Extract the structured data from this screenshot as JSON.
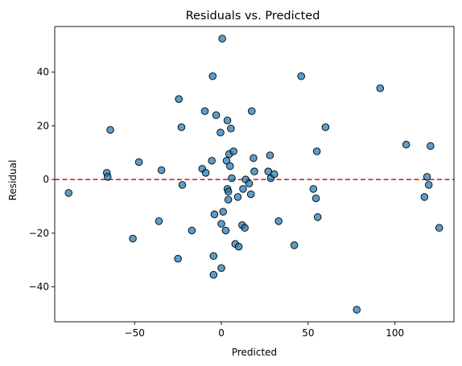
{
  "chart_data": {
    "type": "scatter",
    "title": "Residuals vs. Predicted",
    "xlabel": "Predicted",
    "ylabel": "Residual",
    "xlim": [
      -96,
      134
    ],
    "ylim": [
      -53,
      57
    ],
    "xticks": [
      -50,
      0,
      50,
      100
    ],
    "yticks": [
      -40,
      -20,
      0,
      20,
      40
    ],
    "grid": false,
    "reference_line": {
      "y": 0,
      "color": "#d62728",
      "style": "dashed"
    },
    "marker_color": "#1f77b4",
    "marker_edge_color": "#000000",
    "points": [
      {
        "x": -88,
        "y": -5
      },
      {
        "x": -66,
        "y": 2.5
      },
      {
        "x": -65.5,
        "y": 1
      },
      {
        "x": -64,
        "y": 18.5
      },
      {
        "x": -51,
        "y": -22
      },
      {
        "x": -47.5,
        "y": 6.5
      },
      {
        "x": -36,
        "y": -15.5
      },
      {
        "x": -34.5,
        "y": 3.5
      },
      {
        "x": -25,
        "y": -29.5
      },
      {
        "x": -24.5,
        "y": 30
      },
      {
        "x": -23,
        "y": 19.5
      },
      {
        "x": -22.5,
        "y": -2
      },
      {
        "x": -17,
        "y": -19
      },
      {
        "x": -11,
        "y": 4
      },
      {
        "x": -9.5,
        "y": 25.5
      },
      {
        "x": -9,
        "y": 2.5
      },
      {
        "x": -5.5,
        "y": 7
      },
      {
        "x": -5,
        "y": 38.5
      },
      {
        "x": -4.5,
        "y": -28.5
      },
      {
        "x": -4.5,
        "y": -35.5
      },
      {
        "x": -4,
        "y": -13
      },
      {
        "x": -3,
        "y": 24
      },
      {
        "x": -0.5,
        "y": 17.5
      },
      {
        "x": 0,
        "y": -16.5
      },
      {
        "x": 0,
        "y": -33
      },
      {
        "x": 0.5,
        "y": 52.5
      },
      {
        "x": 1,
        "y": -12
      },
      {
        "x": 2.5,
        "y": -19
      },
      {
        "x": 3,
        "y": 7
      },
      {
        "x": 3.5,
        "y": -3.5
      },
      {
        "x": 3.5,
        "y": 22
      },
      {
        "x": 4,
        "y": -7.5
      },
      {
        "x": 4,
        "y": -4.5
      },
      {
        "x": 4.5,
        "y": 9.5
      },
      {
        "x": 5,
        "y": 5
      },
      {
        "x": 5.5,
        "y": 19
      },
      {
        "x": 6,
        "y": 0.5
      },
      {
        "x": 7,
        "y": 10.5
      },
      {
        "x": 8,
        "y": -24
      },
      {
        "x": 9.5,
        "y": -6.5
      },
      {
        "x": 10,
        "y": -25
      },
      {
        "x": 12,
        "y": -17
      },
      {
        "x": 12.5,
        "y": -3.5
      },
      {
        "x": 13.5,
        "y": -18
      },
      {
        "x": 14,
        "y": 0
      },
      {
        "x": 16,
        "y": -1.5
      },
      {
        "x": 17,
        "y": -5.5
      },
      {
        "x": 17.5,
        "y": 25.5
      },
      {
        "x": 18.5,
        "y": 8
      },
      {
        "x": 19,
        "y": 3
      },
      {
        "x": 27,
        "y": 3
      },
      {
        "x": 28,
        "y": 9
      },
      {
        "x": 28.5,
        "y": 0.5
      },
      {
        "x": 30.5,
        "y": 2
      },
      {
        "x": 33,
        "y": -15.5
      },
      {
        "x": 42,
        "y": -24.5
      },
      {
        "x": 46,
        "y": 38.5
      },
      {
        "x": 53,
        "y": -3.5
      },
      {
        "x": 54.5,
        "y": -7
      },
      {
        "x": 55,
        "y": 10.5
      },
      {
        "x": 55.5,
        "y": -14
      },
      {
        "x": 60,
        "y": 19.5
      },
      {
        "x": 78,
        "y": -48.5
      },
      {
        "x": 91.5,
        "y": 34
      },
      {
        "x": 106.5,
        "y": 13
      },
      {
        "x": 117,
        "y": -6.5
      },
      {
        "x": 118.5,
        "y": 1
      },
      {
        "x": 119.5,
        "y": -2
      },
      {
        "x": 120.5,
        "y": 12.5
      },
      {
        "x": 125.5,
        "y": -18
      }
    ]
  }
}
